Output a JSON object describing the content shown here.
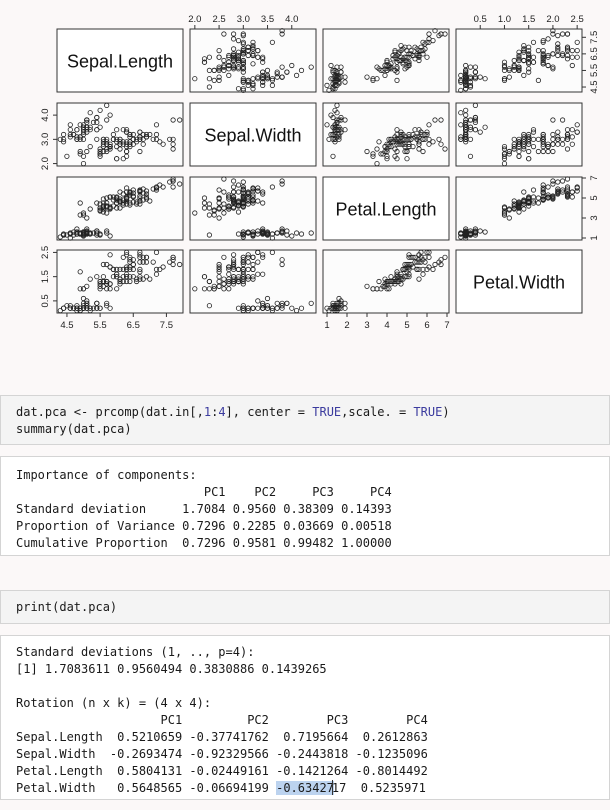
{
  "chart_data": {
    "type": "scatter",
    "variables": [
      "Sepal.Length",
      "Sepal.Width",
      "Petal.Length",
      "Petal.Width"
    ],
    "ranges": {
      "Sepal.Length": [
        4.2,
        8.0
      ],
      "Sepal.Width": [
        1.9,
        4.5
      ],
      "Petal.Length": [
        0.8,
        7.1
      ],
      "Petal.Width": [
        0.0,
        2.6
      ]
    },
    "ticks": {
      "Sepal.Length": {
        "values": [
          4.5,
          5.5,
          6.5,
          7.5
        ],
        "labels": [
          "4.5",
          "5.5",
          "6.5",
          "7.5"
        ]
      },
      "Sepal.Width": {
        "values": [
          2.0,
          2.5,
          3.0,
          3.5,
          4.0
        ],
        "labels": [
          "2.0",
          "2.5",
          "3.0",
          "3.5",
          "4.0"
        ]
      },
      "Sepal.Width_left": {
        "values": [
          2.0,
          3.0,
          4.0
        ],
        "labels": [
          "2.0",
          "3.0",
          "4.0"
        ]
      },
      "Petal.Length": {
        "values": [
          1,
          2,
          3,
          4,
          5,
          6,
          7
        ],
        "labels": [
          "1",
          "2",
          "3",
          "4",
          "5",
          "6",
          "7"
        ]
      },
      "Petal.Length_right": {
        "values": [
          1,
          3,
          5,
          7
        ],
        "labels": [
          "1",
          "3",
          "5",
          "7"
        ]
      },
      "Petal.Width": {
        "values": [
          0.5,
          1.0,
          1.5,
          2.0,
          2.5
        ],
        "labels": [
          "0.5",
          "1.0",
          "1.5",
          "2.0",
          "2.5"
        ]
      },
      "Petal.Width_left": {
        "values": [
          0.5,
          1.5,
          2.5
        ],
        "labels": [
          "0.5",
          "1.5",
          "2.5"
        ]
      },
      "Sepal.Length_right": {
        "values": [
          4.5,
          5.5,
          6.5,
          7.5
        ],
        "labels": [
          "4.5",
          "5.5",
          "6.5",
          "7.5"
        ]
      }
    },
    "points": [
      [
        5.1,
        3.5,
        1.4,
        0.2
      ],
      [
        4.9,
        3.0,
        1.4,
        0.2
      ],
      [
        4.7,
        3.2,
        1.3,
        0.2
      ],
      [
        4.6,
        3.1,
        1.5,
        0.2
      ],
      [
        5.0,
        3.6,
        1.4,
        0.2
      ],
      [
        5.4,
        3.9,
        1.7,
        0.4
      ],
      [
        4.6,
        3.4,
        1.4,
        0.3
      ],
      [
        5.0,
        3.4,
        1.5,
        0.2
      ],
      [
        4.4,
        2.9,
        1.4,
        0.2
      ],
      [
        4.9,
        3.1,
        1.5,
        0.1
      ],
      [
        5.4,
        3.7,
        1.5,
        0.2
      ],
      [
        4.8,
        3.4,
        1.6,
        0.2
      ],
      [
        4.8,
        3.0,
        1.4,
        0.1
      ],
      [
        4.3,
        3.0,
        1.1,
        0.1
      ],
      [
        5.8,
        4.0,
        1.2,
        0.2
      ],
      [
        5.7,
        4.4,
        1.5,
        0.4
      ],
      [
        5.4,
        3.9,
        1.3,
        0.4
      ],
      [
        5.1,
        3.5,
        1.4,
        0.3
      ],
      [
        5.7,
        3.8,
        1.7,
        0.3
      ],
      [
        5.1,
        3.8,
        1.5,
        0.3
      ],
      [
        5.4,
        3.4,
        1.7,
        0.2
      ],
      [
        5.1,
        3.7,
        1.5,
        0.4
      ],
      [
        4.6,
        3.6,
        1.0,
        0.2
      ],
      [
        5.1,
        3.3,
        1.7,
        0.5
      ],
      [
        4.8,
        3.4,
        1.9,
        0.2
      ],
      [
        5.0,
        3.0,
        1.6,
        0.2
      ],
      [
        5.0,
        3.4,
        1.6,
        0.4
      ],
      [
        5.2,
        3.5,
        1.5,
        0.2
      ],
      [
        5.2,
        3.4,
        1.4,
        0.2
      ],
      [
        4.7,
        3.2,
        1.6,
        0.2
      ],
      [
        4.8,
        3.1,
        1.6,
        0.2
      ],
      [
        5.4,
        3.4,
        1.5,
        0.4
      ],
      [
        5.2,
        4.1,
        1.5,
        0.1
      ],
      [
        5.5,
        4.2,
        1.4,
        0.2
      ],
      [
        4.9,
        3.1,
        1.5,
        0.2
      ],
      [
        5.0,
        3.2,
        1.2,
        0.2
      ],
      [
        5.5,
        3.5,
        1.3,
        0.2
      ],
      [
        4.9,
        3.6,
        1.4,
        0.1
      ],
      [
        4.4,
        3.0,
        1.3,
        0.2
      ],
      [
        5.1,
        3.4,
        1.5,
        0.2
      ],
      [
        5.0,
        3.5,
        1.3,
        0.3
      ],
      [
        4.5,
        2.3,
        1.3,
        0.3
      ],
      [
        4.4,
        3.2,
        1.3,
        0.2
      ],
      [
        5.0,
        3.5,
        1.6,
        0.6
      ],
      [
        5.1,
        3.8,
        1.9,
        0.4
      ],
      [
        4.8,
        3.0,
        1.4,
        0.3
      ],
      [
        5.1,
        3.8,
        1.6,
        0.2
      ],
      [
        4.6,
        3.2,
        1.4,
        0.2
      ],
      [
        5.3,
        3.7,
        1.5,
        0.2
      ],
      [
        5.0,
        3.3,
        1.4,
        0.2
      ],
      [
        7.0,
        3.2,
        4.7,
        1.4
      ],
      [
        6.4,
        3.2,
        4.5,
        1.5
      ],
      [
        6.9,
        3.1,
        4.9,
        1.5
      ],
      [
        5.5,
        2.3,
        4.0,
        1.3
      ],
      [
        6.5,
        2.8,
        4.6,
        1.5
      ],
      [
        5.7,
        2.8,
        4.5,
        1.3
      ],
      [
        6.3,
        3.3,
        4.7,
        1.6
      ],
      [
        4.9,
        2.4,
        3.3,
        1.0
      ],
      [
        6.6,
        2.9,
        4.6,
        1.3
      ],
      [
        5.2,
        2.7,
        3.9,
        1.4
      ],
      [
        5.0,
        2.0,
        3.5,
        1.0
      ],
      [
        5.9,
        3.0,
        4.2,
        1.5
      ],
      [
        6.0,
        2.2,
        4.0,
        1.0
      ],
      [
        6.1,
        2.9,
        4.7,
        1.4
      ],
      [
        5.6,
        2.9,
        3.6,
        1.3
      ],
      [
        6.7,
        3.1,
        4.4,
        1.4
      ],
      [
        5.6,
        3.0,
        4.5,
        1.5
      ],
      [
        5.8,
        2.7,
        4.1,
        1.0
      ],
      [
        6.2,
        2.2,
        4.5,
        1.5
      ],
      [
        5.6,
        2.5,
        3.9,
        1.1
      ],
      [
        5.9,
        3.2,
        4.8,
        1.8
      ],
      [
        6.1,
        2.8,
        4.0,
        1.3
      ],
      [
        6.3,
        2.5,
        4.9,
        1.5
      ],
      [
        6.1,
        2.8,
        4.7,
        1.2
      ],
      [
        6.4,
        2.9,
        4.3,
        1.3
      ],
      [
        6.6,
        3.0,
        4.4,
        1.4
      ],
      [
        6.8,
        2.8,
        4.8,
        1.4
      ],
      [
        6.7,
        3.0,
        5.0,
        1.7
      ],
      [
        6.0,
        2.9,
        4.5,
        1.5
      ],
      [
        5.7,
        2.6,
        3.5,
        1.0
      ],
      [
        5.5,
        2.4,
        3.8,
        1.1
      ],
      [
        5.5,
        2.4,
        3.7,
        1.0
      ],
      [
        5.8,
        2.7,
        3.9,
        1.2
      ],
      [
        6.0,
        2.7,
        5.1,
        1.6
      ],
      [
        5.4,
        3.0,
        4.5,
        1.5
      ],
      [
        6.0,
        3.4,
        4.5,
        1.6
      ],
      [
        6.7,
        3.1,
        4.7,
        1.5
      ],
      [
        6.3,
        2.3,
        4.4,
        1.3
      ],
      [
        5.6,
        3.0,
        4.1,
        1.3
      ],
      [
        5.5,
        2.5,
        4.0,
        1.3
      ],
      [
        5.5,
        2.6,
        4.4,
        1.2
      ],
      [
        6.1,
        3.0,
        4.6,
        1.4
      ],
      [
        5.8,
        2.6,
        4.0,
        1.2
      ],
      [
        5.0,
        2.3,
        3.3,
        1.0
      ],
      [
        5.6,
        2.7,
        4.2,
        1.3
      ],
      [
        5.7,
        3.0,
        4.2,
        1.2
      ],
      [
        5.7,
        2.9,
        4.2,
        1.3
      ],
      [
        6.2,
        2.9,
        4.3,
        1.3
      ],
      [
        5.1,
        2.5,
        3.0,
        1.1
      ],
      [
        5.7,
        2.8,
        4.1,
        1.3
      ],
      [
        6.3,
        3.3,
        6.0,
        2.5
      ],
      [
        5.8,
        2.7,
        5.1,
        1.9
      ],
      [
        7.1,
        3.0,
        5.9,
        2.1
      ],
      [
        6.3,
        2.9,
        5.6,
        1.8
      ],
      [
        6.5,
        3.0,
        5.8,
        2.2
      ],
      [
        7.6,
        3.0,
        6.6,
        2.1
      ],
      [
        4.9,
        2.5,
        4.5,
        1.7
      ],
      [
        7.3,
        2.9,
        6.3,
        1.8
      ],
      [
        6.7,
        2.5,
        5.8,
        1.8
      ],
      [
        7.2,
        3.6,
        6.1,
        2.5
      ],
      [
        6.5,
        3.2,
        5.1,
        2.0
      ],
      [
        6.4,
        2.7,
        5.3,
        1.9
      ],
      [
        6.8,
        3.0,
        5.5,
        2.1
      ],
      [
        5.7,
        2.5,
        5.0,
        2.0
      ],
      [
        5.8,
        2.8,
        5.1,
        2.4
      ],
      [
        6.4,
        3.2,
        5.3,
        2.3
      ],
      [
        6.5,
        3.0,
        5.5,
        1.8
      ],
      [
        7.7,
        3.8,
        6.7,
        2.2
      ],
      [
        7.7,
        2.6,
        6.9,
        2.3
      ],
      [
        6.0,
        2.2,
        5.0,
        1.5
      ],
      [
        6.9,
        3.2,
        5.7,
        2.3
      ],
      [
        5.6,
        2.8,
        4.9,
        2.0
      ],
      [
        7.7,
        2.8,
        6.7,
        2.0
      ],
      [
        6.3,
        2.7,
        4.9,
        1.8
      ],
      [
        6.7,
        3.3,
        5.7,
        2.1
      ],
      [
        7.2,
        3.2,
        6.0,
        1.8
      ],
      [
        6.2,
        2.8,
        4.8,
        1.8
      ],
      [
        6.1,
        3.0,
        4.9,
        1.8
      ],
      [
        6.4,
        2.8,
        5.6,
        2.1
      ],
      [
        7.2,
        3.0,
        5.8,
        1.6
      ],
      [
        7.4,
        2.8,
        6.1,
        1.9
      ],
      [
        7.9,
        3.8,
        6.4,
        2.0
      ],
      [
        6.4,
        2.8,
        5.6,
        2.2
      ],
      [
        6.3,
        2.8,
        5.1,
        1.5
      ],
      [
        6.1,
        2.6,
        5.6,
        1.4
      ],
      [
        7.7,
        3.0,
        6.1,
        2.3
      ],
      [
        6.3,
        3.4,
        5.6,
        2.4
      ],
      [
        6.4,
        3.1,
        5.5,
        1.8
      ],
      [
        6.0,
        3.0,
        4.8,
        1.8
      ],
      [
        6.9,
        3.1,
        5.4,
        2.1
      ],
      [
        6.7,
        3.1,
        5.6,
        2.4
      ],
      [
        6.9,
        3.1,
        5.1,
        2.3
      ],
      [
        5.8,
        2.7,
        5.1,
        1.9
      ],
      [
        6.8,
        3.2,
        5.9,
        2.3
      ],
      [
        6.7,
        3.3,
        5.7,
        2.5
      ],
      [
        6.7,
        3.0,
        5.2,
        2.3
      ],
      [
        6.3,
        2.5,
        5.0,
        1.9
      ],
      [
        6.5,
        3.0,
        5.2,
        2.0
      ],
      [
        6.2,
        3.4,
        5.4,
        2.3
      ],
      [
        5.9,
        3.0,
        5.1,
        1.8
      ]
    ]
  },
  "cells": {
    "pca_code": {
      "l1_a": "dat.pca <- prcomp(dat.in[,",
      "l1_num1": "1",
      "l1_colon": ":",
      "l1_num2": "4",
      "l1_b": "], center = ",
      "l1_true1": "TRUE",
      "l1_c": ",scale. = ",
      "l1_true2": "TRUE",
      "l1_d": ")",
      "l2": "summary(dat.pca)"
    },
    "summary_output": {
      "l1": "Importance of components:",
      "l2": "                          PC1    PC2     PC3     PC4",
      "l3": "Standard deviation     1.7084 0.9560 0.38309 0.14393",
      "l4": "Proportion of Variance 0.7296 0.2285 0.03669 0.00518",
      "l5": "Cumulative Proportion  0.7296 0.9581 0.99482 1.00000"
    },
    "print_code": {
      "l1": "print(dat.pca)"
    },
    "print_output": {
      "l1": "Standard deviations (1, .., p=4):",
      "l2": "[1] 1.7083611 0.9560494 0.3830886 0.1439265",
      "l3": "",
      "l4": "Rotation (n x k) = (4 x 4):",
      "l5": "                    PC1         PC2        PC3        PC4",
      "l6": "Sepal.Length  0.5210659 -0.37741762  0.7195664  0.2612863",
      "l7": "Sepal.Width  -0.2693474 -0.92329566 -0.2443818 -0.1235096",
      "l8": "Petal.Length  0.5804131 -0.02449161 -0.1421264 -0.8014492",
      "l9_a": "Petal.Width   0.5648565 -0.06694199 ",
      "l9_sel": "-0.63427",
      "l9_b": "17  0.5235971"
    }
  }
}
